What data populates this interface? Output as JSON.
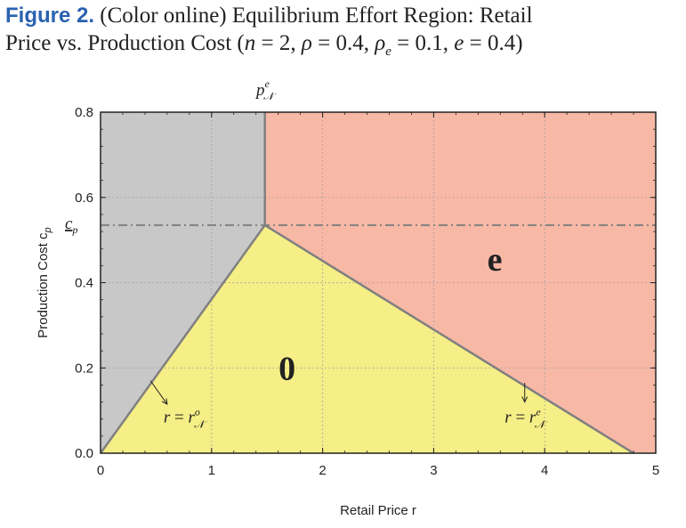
{
  "caption": {
    "label": "Figure 2.",
    "text_before": "(Color online) Equilibrium Effort Region: Retail",
    "text_line2": "Price vs. Production Cost (",
    "params": [
      {
        "sym": "n",
        "sub": "",
        "val": "2"
      },
      {
        "sym": "ρ",
        "sub": "",
        "val": "0.4"
      },
      {
        "sym": "ρ",
        "sub": "e",
        "val": "0.1"
      },
      {
        "sym": "e",
        "sub": "",
        "val": "0.4"
      }
    ],
    "close": ")"
  },
  "chart_data": {
    "type": "area",
    "xlabel": "Retail Price r",
    "ylabel": "Production Cost c",
    "ylabel_sub": "p",
    "xlim": [
      0,
      5
    ],
    "ylim": [
      0,
      0.8
    ],
    "xticks": [
      0,
      1,
      2,
      3,
      4,
      5
    ],
    "yticks": [
      0.0,
      0.2,
      0.4,
      0.6,
      0.8
    ],
    "ytick_labels": [
      "0.0",
      "0.2",
      "0.4",
      "0.6",
      "0.8"
    ],
    "grid": true,
    "regions": [
      {
        "name": "0",
        "color": "#f6ee86",
        "polygon": [
          [
            0,
            0
          ],
          [
            1.48,
            0.535
          ],
          [
            4.8,
            0
          ]
        ]
      },
      {
        "name": "",
        "color": "#c8c8c8",
        "polygon": [
          [
            0,
            0
          ],
          [
            0,
            0.8
          ],
          [
            1.48,
            0.8
          ],
          [
            1.48,
            0.535
          ]
        ]
      },
      {
        "name": "e",
        "color": "#f8b8a6",
        "polygon": [
          [
            1.48,
            0.535
          ],
          [
            1.48,
            0.8
          ],
          [
            5,
            0.8
          ],
          [
            5,
            0
          ],
          [
            4.8,
            0
          ]
        ]
      }
    ],
    "boundaries": [
      {
        "name": "r = r^o_N",
        "points": [
          [
            0,
            0
          ],
          [
            1.48,
            0.535
          ]
        ],
        "label_at": [
          0.75,
          0.085
        ],
        "arrow_from": [
          0.45,
          0.17
        ],
        "arrow_to": [
          0.6,
          0.115
        ]
      },
      {
        "name": "r = r^e_N",
        "points": [
          [
            1.48,
            0.535
          ],
          [
            4.8,
            0
          ]
        ],
        "label_at": [
          3.82,
          0.085
        ],
        "arrow_from": [
          3.82,
          0.165
        ],
        "arrow_to": [
          3.82,
          0.12
        ]
      },
      {
        "name": "p^e_N",
        "points": [
          [
            1.48,
            0.535
          ],
          [
            1.48,
            0.8
          ]
        ]
      }
    ],
    "hline": {
      "name": "c_p",
      "y": 0.535,
      "style": "dash-dot"
    },
    "top_label": {
      "text": "p",
      "sup": "e",
      "sub": "𝒩",
      "x": 1.48
    },
    "hline_label": {
      "text": "c",
      "sub": "p"
    },
    "region_labels": [
      {
        "text": "0",
        "x": 1.68,
        "y": 0.2
      },
      {
        "text": "e",
        "x": 3.55,
        "y": 0.455
      }
    ],
    "colors": {
      "line": "#808080",
      "grid": "#a0a0a0",
      "axis": "#222222"
    }
  }
}
